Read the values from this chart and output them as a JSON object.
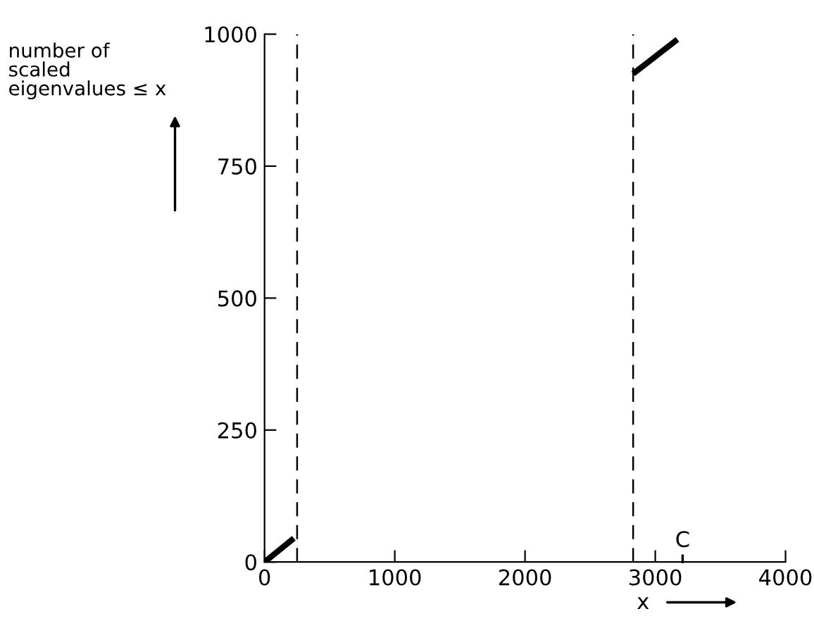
{
  "chart_data": {
    "type": "line",
    "xlabel": "x",
    "ylabel": "number of\nscaled\neigenvalues ≤ x",
    "series": [
      {
        "color": "#000000",
        "x": [
          0,
          225
        ],
        "values": [
          0,
          45
        ]
      },
      {
        "color": "#000000",
        "x": [
          2830,
          3170
        ],
        "values": [
          925,
          990
        ]
      }
    ],
    "xlim": [
      0,
      4000
    ],
    "ylim": [
      0,
      1000
    ],
    "xticks": [
      0,
      1000,
      2000,
      3000,
      4000
    ],
    "yticks": [
      0,
      250,
      500,
      750,
      1000
    ],
    "ref_lines": [
      {
        "axis": "x",
        "value": 250,
        "line_style": "dashed",
        "color": "#000000"
      },
      {
        "axis": "x",
        "value": 2830,
        "line_style": "dashed",
        "color": "#000000"
      }
    ],
    "annotations": [
      "C"
    ],
    "grid": false
  }
}
